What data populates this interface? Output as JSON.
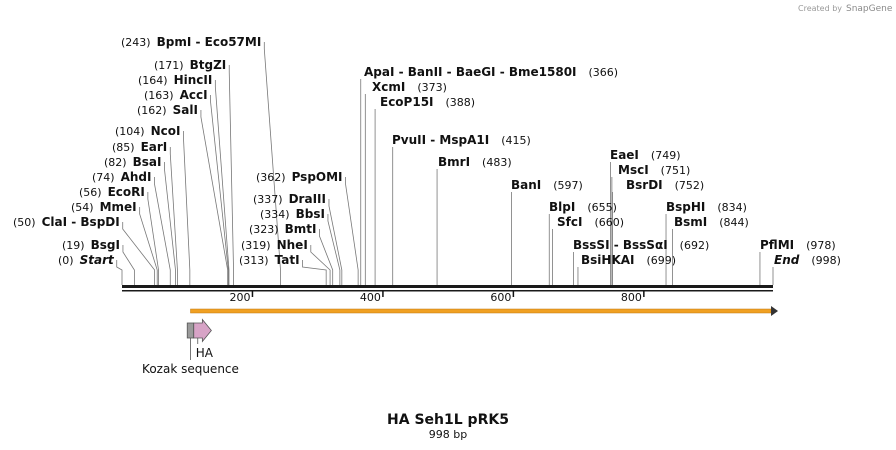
{
  "brand": {
    "created_by": "Created by",
    "name": "SnapGene"
  },
  "plasmid": {
    "name": "HA Seh1L pRK5",
    "length_label": "998 bp",
    "length": 998
  },
  "ruler": {
    "ticks": [
      200,
      400,
      600,
      800
    ]
  },
  "enzymes": [
    {
      "pos": 0,
      "pos_label": "(0)",
      "name": "Start",
      "italic": true
    },
    {
      "pos": 19,
      "pos_label": "(19)",
      "name": "BsgI"
    },
    {
      "pos": 50,
      "pos_label": "(50)",
      "name": "ClaI - BspDI"
    },
    {
      "pos": 54,
      "pos_label": "(54)",
      "name": "MmeI"
    },
    {
      "pos": 56,
      "pos_label": "(56)",
      "name": "EcoRI"
    },
    {
      "pos": 74,
      "pos_label": "(74)",
      "name": "AhdI"
    },
    {
      "pos": 82,
      "pos_label": "(82)",
      "name": "BsaI"
    },
    {
      "pos": 85,
      "pos_label": "(85)",
      "name": "EarI"
    },
    {
      "pos": 104,
      "pos_label": "(104)",
      "name": "NcoI"
    },
    {
      "pos": 162,
      "pos_label": "(162)",
      "name": "SalI"
    },
    {
      "pos": 163,
      "pos_label": "(163)",
      "name": "AccI"
    },
    {
      "pos": 164,
      "pos_label": "(164)",
      "name": "HincII"
    },
    {
      "pos": 171,
      "pos_label": "(171)",
      "name": "BtgZI"
    },
    {
      "pos": 243,
      "pos_label": "(243)",
      "name": "BpmI - Eco57MI"
    },
    {
      "pos": 313,
      "pos_label": "(313)",
      "name": "TatI"
    },
    {
      "pos": 319,
      "pos_label": "(319)",
      "name": "NheI"
    },
    {
      "pos": 323,
      "pos_label": "(323)",
      "name": "BmtI"
    },
    {
      "pos": 334,
      "pos_label": "(334)",
      "name": "BbsI"
    },
    {
      "pos": 337,
      "pos_label": "(337)",
      "name": "DraIII"
    },
    {
      "pos": 362,
      "pos_label": "(362)",
      "name": "PspOMI"
    },
    {
      "pos": 366,
      "pos_label": "(366)",
      "name": "ApaI - BanII - BaeGI - Bme1580I"
    },
    {
      "pos": 373,
      "pos_label": "(373)",
      "name": "XcmI"
    },
    {
      "pos": 388,
      "pos_label": "(388)",
      "name": "EcoP15I"
    },
    {
      "pos": 415,
      "pos_label": "(415)",
      "name": "PvuII - MspA1I"
    },
    {
      "pos": 483,
      "pos_label": "(483)",
      "name": "BmrI"
    },
    {
      "pos": 597,
      "pos_label": "(597)",
      "name": "BanI"
    },
    {
      "pos": 655,
      "pos_label": "(655)",
      "name": "BlpI"
    },
    {
      "pos": 660,
      "pos_label": "(660)",
      "name": "SfcI"
    },
    {
      "pos": 692,
      "pos_label": "(692)",
      "name": "BssSI - BssSαI"
    },
    {
      "pos": 699,
      "pos_label": "(699)",
      "name": "BsiHKAI"
    },
    {
      "pos": 749,
      "pos_label": "(749)",
      "name": "EaeI"
    },
    {
      "pos": 751,
      "pos_label": "(751)",
      "name": "MscI"
    },
    {
      "pos": 752,
      "pos_label": "(752)",
      "name": "BsrDI"
    },
    {
      "pos": 834,
      "pos_label": "(834)",
      "name": "BspHI"
    },
    {
      "pos": 844,
      "pos_label": "(844)",
      "name": "BsmI"
    },
    {
      "pos": 978,
      "pos_label": "(978)",
      "name": "PflMI"
    },
    {
      "pos": 998,
      "pos_label": "(998)",
      "name": "End",
      "italic": true
    }
  ],
  "features": [
    {
      "name": "Kozak sequence",
      "type": "box",
      "start": 100,
      "end": 110,
      "color": "#9a9a9a"
    },
    {
      "name": "HA",
      "type": "arrow",
      "start": 110,
      "end": 137,
      "color": "#d7a3c6"
    },
    {
      "name": "",
      "type": "orf",
      "start": 105,
      "end": 995,
      "color": "#f0a022"
    }
  ]
}
